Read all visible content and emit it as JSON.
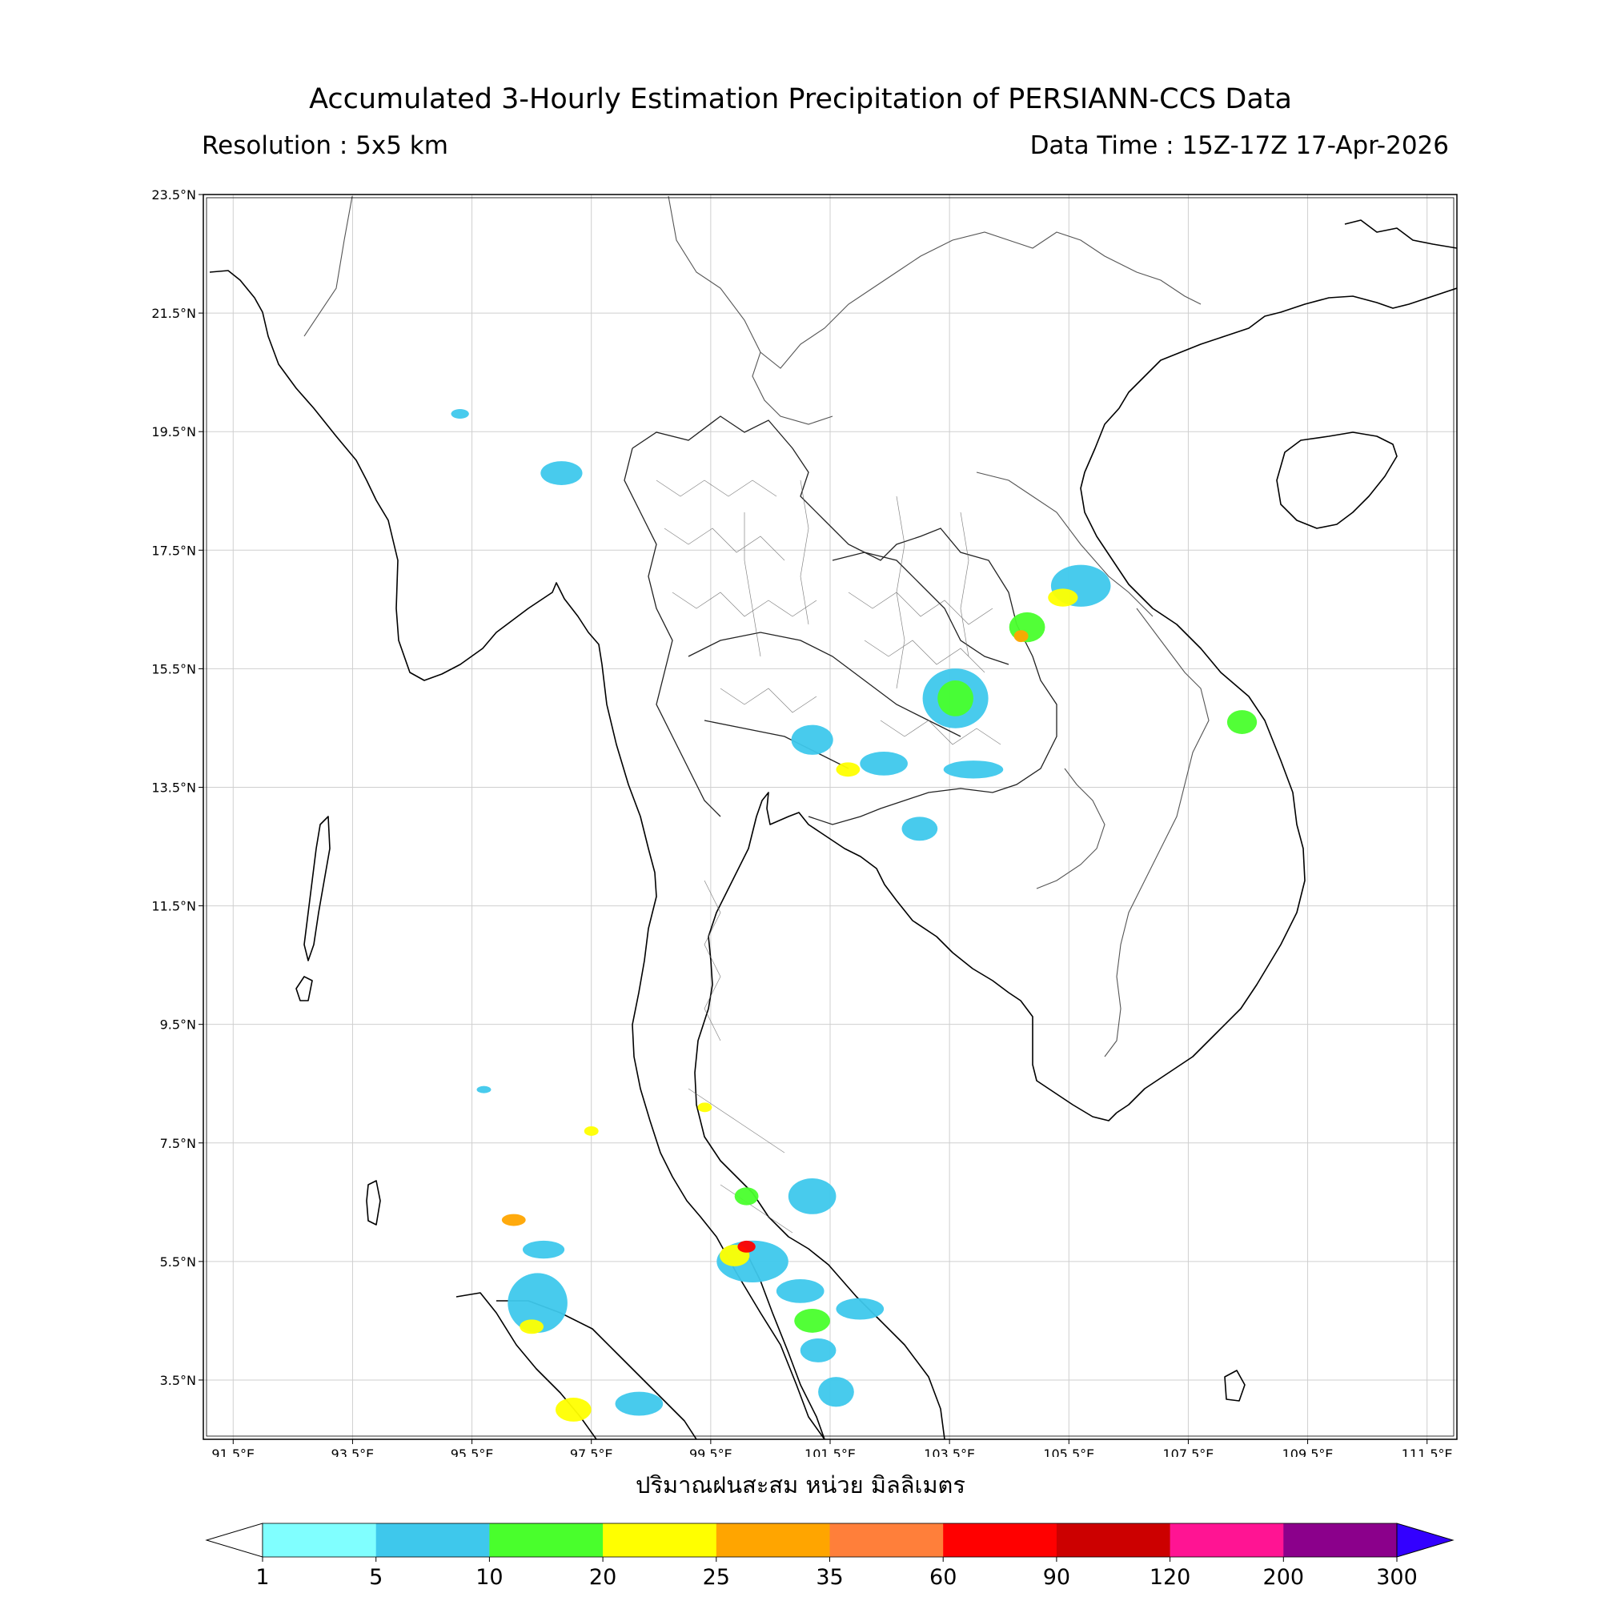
{
  "title": "Accumulated 3-Hourly Estimation Precipitation of PERSIANN-CCS Data",
  "resolution": "Resolution : 5x5 km",
  "data_time": "Data Time : 15Z-17Z 17-Apr-2026",
  "xlabel": "ปริมาณฝนสะสม หน่วย มิลลิเมตร",
  "map": {
    "lon_range": [
      91.0,
      112.0
    ],
    "lat_range": [
      2.5,
      23.5
    ],
    "lon_ticks": [
      "91.5°E",
      "93.5°E",
      "95.5°E",
      "97.5°E",
      "99.5°E",
      "101.5°E",
      "103.5°E",
      "105.5°E",
      "107.5°E",
      "109.5°E",
      "111.5°E"
    ],
    "lon_values": [
      91.5,
      93.5,
      95.5,
      97.5,
      99.5,
      101.5,
      103.5,
      105.5,
      107.5,
      109.5,
      111.5
    ],
    "lat_ticks": [
      "23.5°N",
      "21.5°N",
      "19.5°N",
      "17.5°N",
      "15.5°N",
      "13.5°N",
      "11.5°N",
      "9.5°N",
      "7.5°N",
      "5.5°N",
      "3.5°N"
    ],
    "lat_values": [
      23.5,
      21.5,
      19.5,
      17.5,
      15.5,
      13.5,
      11.5,
      9.5,
      7.5,
      5.5,
      3.5
    ],
    "grid": true
  },
  "rain_cells": [
    {
      "lon": 105.7,
      "lat": 16.9,
      "rx": 0.5,
      "ry": 0.35,
      "level": 1
    },
    {
      "lon": 105.4,
      "lat": 16.7,
      "rx": 0.25,
      "ry": 0.15,
      "level": 3
    },
    {
      "lon": 104.8,
      "lat": 16.2,
      "rx": 0.3,
      "ry": 0.25,
      "level": 2
    },
    {
      "lon": 104.7,
      "lat": 16.05,
      "rx": 0.12,
      "ry": 0.1,
      "level": 4
    },
    {
      "lon": 103.6,
      "lat": 15.0,
      "rx": 0.55,
      "ry": 0.5,
      "level": 1
    },
    {
      "lon": 103.6,
      "lat": 15.0,
      "rx": 0.3,
      "ry": 0.3,
      "level": 2
    },
    {
      "lon": 101.2,
      "lat": 14.3,
      "rx": 0.35,
      "ry": 0.25,
      "level": 1
    },
    {
      "lon": 102.4,
      "lat": 13.9,
      "rx": 0.4,
      "ry": 0.2,
      "level": 1
    },
    {
      "lon": 101.8,
      "lat": 13.8,
      "rx": 0.2,
      "ry": 0.12,
      "level": 3
    },
    {
      "lon": 103.9,
      "lat": 13.8,
      "rx": 0.5,
      "ry": 0.15,
      "level": 1
    },
    {
      "lon": 103.0,
      "lat": 12.8,
      "rx": 0.3,
      "ry": 0.2,
      "level": 1
    },
    {
      "lon": 108.4,
      "lat": 14.6,
      "rx": 0.25,
      "ry": 0.2,
      "level": 2
    },
    {
      "lon": 97.0,
      "lat": 18.8,
      "rx": 0.35,
      "ry": 0.2,
      "level": 1
    },
    {
      "lon": 100.2,
      "lat": 5.5,
      "rx": 0.6,
      "ry": 0.35,
      "level": 1
    },
    {
      "lon": 99.9,
      "lat": 5.6,
      "rx": 0.25,
      "ry": 0.18,
      "level": 3
    },
    {
      "lon": 100.1,
      "lat": 5.75,
      "rx": 0.15,
      "ry": 0.1,
      "level": 6
    },
    {
      "lon": 101.0,
      "lat": 5.0,
      "rx": 0.4,
      "ry": 0.2,
      "level": 1
    },
    {
      "lon": 101.2,
      "lat": 4.5,
      "rx": 0.3,
      "ry": 0.2,
      "level": 2
    },
    {
      "lon": 102.0,
      "lat": 4.7,
      "rx": 0.4,
      "ry": 0.18,
      "level": 1
    },
    {
      "lon": 101.3,
      "lat": 4.0,
      "rx": 0.3,
      "ry": 0.2,
      "level": 1
    },
    {
      "lon": 101.6,
      "lat": 3.3,
      "rx": 0.3,
      "ry": 0.25,
      "level": 1
    },
    {
      "lon": 100.1,
      "lat": 6.6,
      "rx": 0.2,
      "ry": 0.15,
      "level": 2
    },
    {
      "lon": 101.2,
      "lat": 6.6,
      "rx": 0.4,
      "ry": 0.3,
      "level": 1
    },
    {
      "lon": 96.6,
      "lat": 4.8,
      "rx": 0.5,
      "ry": 0.5,
      "level": 1
    },
    {
      "lon": 96.5,
      "lat": 4.4,
      "rx": 0.2,
      "ry": 0.12,
      "level": 3
    },
    {
      "lon": 96.7,
      "lat": 5.7,
      "rx": 0.35,
      "ry": 0.15,
      "level": 1
    },
    {
      "lon": 96.2,
      "lat": 6.2,
      "rx": 0.2,
      "ry": 0.1,
      "level": 4
    },
    {
      "lon": 97.2,
      "lat": 3.0,
      "rx": 0.3,
      "ry": 0.2,
      "level": 3
    },
    {
      "lon": 98.3,
      "lat": 3.1,
      "rx": 0.4,
      "ry": 0.2,
      "level": 1
    },
    {
      "lon": 97.5,
      "lat": 7.7,
      "rx": 0.12,
      "ry": 0.08,
      "level": 3
    },
    {
      "lon": 99.4,
      "lat": 8.1,
      "rx": 0.12,
      "ry": 0.08,
      "level": 3
    },
    {
      "lon": 95.3,
      "lat": 19.8,
      "rx": 0.15,
      "ry": 0.08,
      "level": 1
    },
    {
      "lon": 95.7,
      "lat": 8.4,
      "rx": 0.12,
      "ry": 0.06,
      "level": 1
    }
  ],
  "colorbar": {
    "labels": [
      "1",
      "5",
      "10",
      "20",
      "25",
      "35",
      "60",
      "90",
      "120",
      "200",
      "300"
    ],
    "colors": [
      "#80ffff",
      "#3ec8ec",
      "#49ff2c",
      "#ffff00",
      "#ffa500",
      "#ff7f3a",
      "#ff0000",
      "#cc0000",
      "#ff1493",
      "#8b008b"
    ],
    "over_color": "#3300ff",
    "under_color": "#ffffff"
  }
}
